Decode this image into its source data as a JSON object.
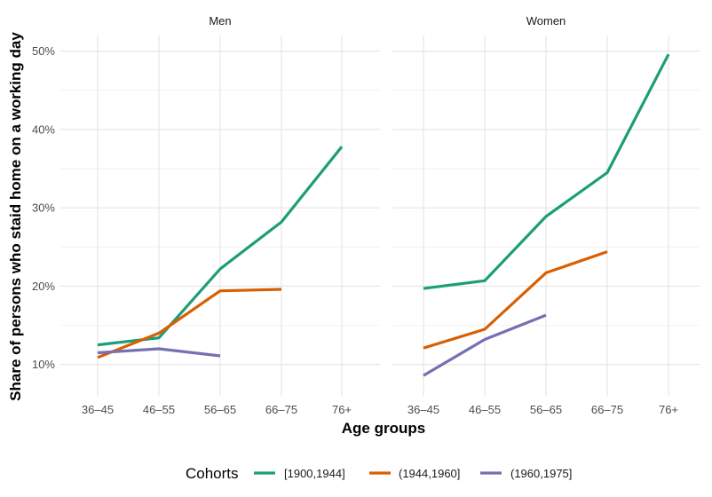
{
  "chart_data": {
    "type": "line",
    "xlabel": "Age groups",
    "ylabel": "Share of persons who staid home on a working day",
    "categories": [
      "36–45",
      "46–55",
      "56–65",
      "66–75",
      "76+"
    ],
    "y_ticks": [
      10,
      20,
      30,
      40,
      50
    ],
    "y_tick_labels": [
      "10%",
      "20%",
      "30%",
      "40%",
      "50%"
    ],
    "ylim": [
      6,
      52
    ],
    "grid": true,
    "legend": {
      "title": "Cohorts",
      "placement": "bottom",
      "items": [
        {
          "name": "[1900,1944]",
          "color": "#1b9e77"
        },
        {
          "name": "(1944,1960]",
          "color": "#d95f02"
        },
        {
          "name": "(1960,1975]",
          "color": "#7570b3"
        }
      ]
    },
    "panels": [
      {
        "title": "Men",
        "series": [
          {
            "name": "[1900,1944]",
            "color": "#1b9e77",
            "values": [
              12.5,
              13.4,
              22.2,
              28.2,
              37.8
            ]
          },
          {
            "name": "(1944,1960]",
            "color": "#d95f02",
            "values": [
              10.9,
              14.0,
              19.4,
              19.6,
              null
            ]
          },
          {
            "name": "(1960,1975]",
            "color": "#7570b3",
            "values": [
              11.5,
              12.0,
              11.1,
              null,
              null
            ]
          }
        ]
      },
      {
        "title": "Women",
        "series": [
          {
            "name": "[1900,1944]",
            "color": "#1b9e77",
            "values": [
              19.7,
              20.7,
              28.9,
              34.5,
              49.6
            ]
          },
          {
            "name": "(1944,1960]",
            "color": "#d95f02",
            "values": [
              12.1,
              14.5,
              21.7,
              24.4,
              null
            ]
          },
          {
            "name": "(1960,1975]",
            "color": "#7570b3",
            "values": [
              8.6,
              13.2,
              16.3,
              null,
              null
            ]
          }
        ]
      }
    ]
  }
}
